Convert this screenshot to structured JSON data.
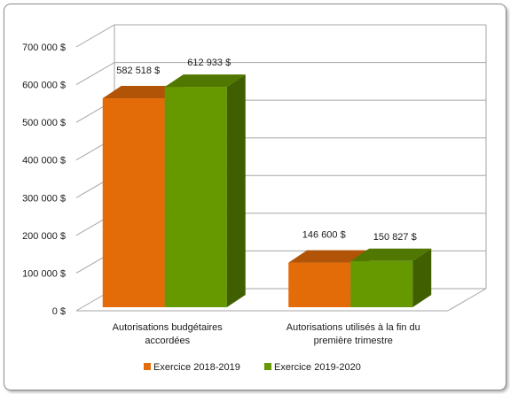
{
  "chart_data": {
    "type": "bar",
    "categories": [
      [
        "Autorisations budgétaires",
        "accordées"
      ],
      [
        "Autorisations utilisés à la fin du",
        "première trimestre"
      ]
    ],
    "series": [
      {
        "name": "Exercice 2018-2019",
        "values": [
          582518,
          146600
        ],
        "labels": [
          "582 518 $",
          "146 600 $"
        ],
        "color": "#e36c09"
      },
      {
        "name": "Exercice 2019-2020",
        "values": [
          612933,
          150827
        ],
        "labels": [
          "612 933 $",
          "150 827 $"
        ],
        "color": "#669900"
      }
    ],
    "yticks": [
      0,
      100000,
      200000,
      300000,
      400000,
      500000,
      600000,
      700000
    ],
    "ytick_labels": [
      "0 $",
      "100 000 $",
      "200 000 $",
      "300 000 $",
      "400 000 $",
      "500 000 $",
      "600 000 $",
      "700 000 $"
    ],
    "ylim": [
      0,
      700000
    ],
    "grid": true,
    "legend": "bottom",
    "three_d": true
  }
}
